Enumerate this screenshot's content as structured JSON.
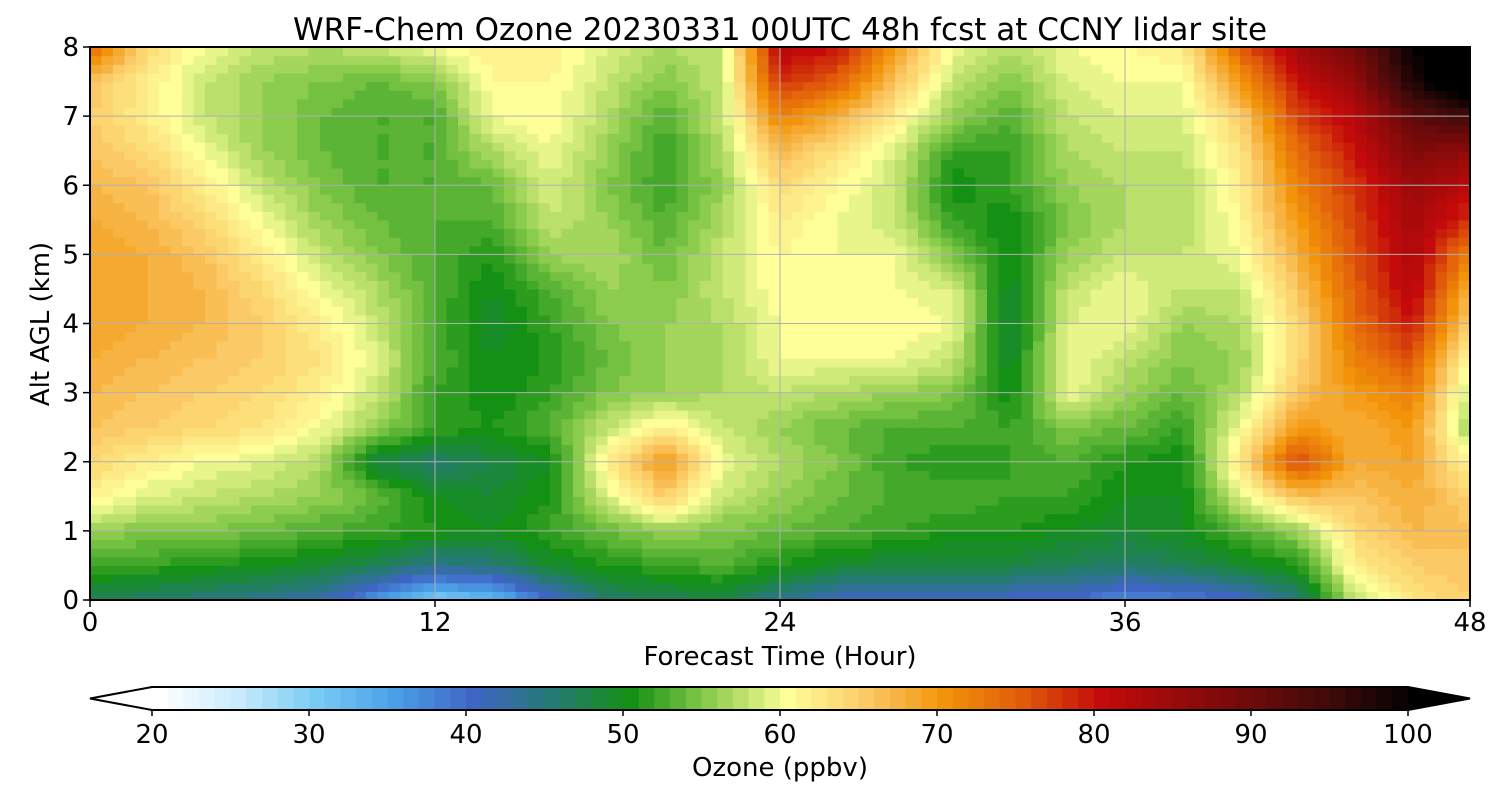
{
  "chart_data": {
    "type": "heatmap",
    "title": "WRF-Chem Ozone  20230331 00UTC 48h fcst at CCNY lidar site",
    "xlabel": "Forecast Time (Hour)",
    "ylabel": "Alt AGL (km)",
    "xlim": [
      0,
      48
    ],
    "ylim": [
      0,
      8
    ],
    "x_ticks": [
      "0",
      "12",
      "24",
      "36",
      "48"
    ],
    "x_tick_values": [
      0,
      12,
      24,
      36,
      48
    ],
    "y_ticks": [
      "0",
      "1",
      "2",
      "3",
      "4",
      "5",
      "6",
      "7",
      "8"
    ],
    "y_tick_values": [
      0,
      1,
      2,
      3,
      4,
      5,
      6,
      7,
      8
    ],
    "grid": true,
    "x": [
      0,
      2,
      4,
      6,
      8,
      10,
      12,
      14,
      16,
      18,
      20,
      22,
      24,
      26,
      28,
      30,
      32,
      34,
      36,
      38,
      40,
      42,
      44,
      46,
      48
    ],
    "y": [
      0,
      0.5,
      1,
      1.5,
      2,
      2.5,
      3,
      3.5,
      4,
      4.5,
      5,
      5.5,
      6,
      6.5,
      7,
      7.5,
      8
    ],
    "z": [
      [
        47,
        46,
        45,
        44,
        42,
        36,
        30,
        32,
        40,
        46,
        47,
        48,
        44,
        41,
        40,
        40,
        40,
        40,
        37,
        38,
        40,
        45,
        58,
        63,
        65
      ],
      [
        52,
        52,
        51,
        50,
        49,
        47,
        44,
        45,
        49,
        51,
        52,
        53,
        51,
        49,
        48,
        48,
        48,
        47,
        46,
        47,
        49,
        51,
        62,
        65,
        66
      ],
      [
        56,
        55,
        55,
        54,
        53,
        52,
        51,
        50,
        52,
        54,
        56,
        55,
        54,
        53,
        52,
        51,
        51,
        50,
        49,
        50,
        53,
        56,
        64,
        67,
        66
      ],
      [
        62,
        59,
        58,
        57,
        56,
        54,
        50,
        49,
        51,
        59,
        65,
        58,
        56,
        54,
        53,
        53,
        52,
        52,
        50,
        50,
        59,
        66,
        66,
        68,
        65
      ],
      [
        64,
        62,
        60,
        59,
        57,
        48,
        46,
        48,
        50,
        62,
        70,
        60,
        57,
        55,
        52,
        51,
        52,
        53,
        51,
        50,
        63,
        77,
        68,
        69,
        61
      ],
      [
        66,
        65,
        64,
        63,
        60,
        56,
        52,
        51,
        53,
        58,
        62,
        58,
        56,
        54,
        53,
        53,
        52,
        55,
        54,
        52,
        60,
        70,
        68,
        70,
        56
      ],
      [
        67,
        66,
        65,
        64,
        62,
        58,
        52,
        50,
        52,
        55,
        56,
        57,
        58,
        57,
        56,
        55,
        50,
        60,
        56,
        54,
        57,
        66,
        70,
        72,
        58
      ],
      [
        68,
        67,
        66,
        65,
        63,
        59,
        53,
        50,
        51,
        54,
        56,
        57,
        60,
        60,
        60,
        58,
        49,
        60,
        58,
        55,
        56,
        64,
        72,
        76,
        60
      ],
      [
        69,
        68,
        67,
        65,
        62,
        58,
        53,
        49,
        52,
        55,
        56,
        57,
        60,
        61,
        61,
        60,
        48,
        59,
        60,
        56,
        57,
        64,
        74,
        80,
        64
      ],
      [
        69,
        68,
        67,
        64,
        60,
        57,
        53,
        50,
        53,
        56,
        55,
        58,
        61,
        61,
        60,
        59,
        49,
        58,
        60,
        58,
        58,
        66,
        75,
        82,
        68
      ],
      [
        69,
        68,
        66,
        62,
        58,
        55,
        53,
        51,
        56,
        57,
        54,
        58,
        61,
        60,
        60,
        55,
        50,
        56,
        58,
        58,
        60,
        68,
        76,
        83,
        72
      ],
      [
        68,
        67,
        64,
        60,
        56,
        54,
        53,
        53,
        58,
        56,
        53,
        57,
        62,
        60,
        58,
        52,
        50,
        55,
        57,
        57,
        61,
        70,
        77,
        84,
        78
      ],
      [
        67,
        66,
        62,
        58,
        55,
        53,
        53,
        54,
        59,
        55,
        52,
        56,
        64,
        61,
        58,
        50,
        52,
        56,
        57,
        57,
        62,
        72,
        78,
        85,
        82
      ],
      [
        66,
        64,
        60,
        56,
        54,
        53,
        53,
        57,
        60,
        56,
        52,
        57,
        67,
        63,
        59,
        52,
        52,
        57,
        58,
        58,
        63,
        74,
        80,
        88,
        86
      ],
      [
        65,
        62,
        58,
        56,
        54,
        53,
        53,
        60,
        61,
        57,
        53,
        58,
        72,
        68,
        62,
        56,
        53,
        58,
        59,
        59,
        65,
        77,
        82,
        92,
        95
      ],
      [
        66,
        62,
        58,
        56,
        55,
        54,
        55,
        61,
        61,
        58,
        55,
        58,
        78,
        75,
        66,
        58,
        55,
        59,
        60,
        60,
        70,
        80,
        86,
        98,
        105
      ],
      [
        74,
        64,
        60,
        58,
        57,
        58,
        60,
        62,
        62,
        59,
        57,
        58,
        82,
        80,
        70,
        60,
        57,
        60,
        61,
        62,
        75,
        84,
        90,
        100,
        106
      ]
    ],
    "colorbar": {
      "label": "Ozone  (ppbv)",
      "min": 20,
      "max": 100,
      "step": 1,
      "ticks": [
        "20",
        "30",
        "40",
        "50",
        "60",
        "70",
        "80",
        "90",
        "100"
      ],
      "tick_values": [
        20,
        30,
        40,
        50,
        60,
        70,
        80,
        90,
        100
      ],
      "extend": "both",
      "color_stops": [
        [
          20,
          "#ffffff"
        ],
        [
          25,
          "#c9ebfb"
        ],
        [
          30,
          "#78cbf4"
        ],
        [
          35,
          "#4a9fe6"
        ],
        [
          40,
          "#3f65c4"
        ],
        [
          45,
          "#257a73"
        ],
        [
          50,
          "#149014"
        ],
        [
          55,
          "#8ccc4c"
        ],
        [
          60,
          "#ffff99"
        ],
        [
          65,
          "#fbc966"
        ],
        [
          70,
          "#f2930a"
        ],
        [
          75,
          "#e05a0a"
        ],
        [
          80,
          "#c40a0a"
        ],
        [
          85,
          "#960a0a"
        ],
        [
          90,
          "#6a0a0a"
        ],
        [
          95,
          "#3a0a0a"
        ],
        [
          100,
          "#000000"
        ]
      ]
    }
  }
}
